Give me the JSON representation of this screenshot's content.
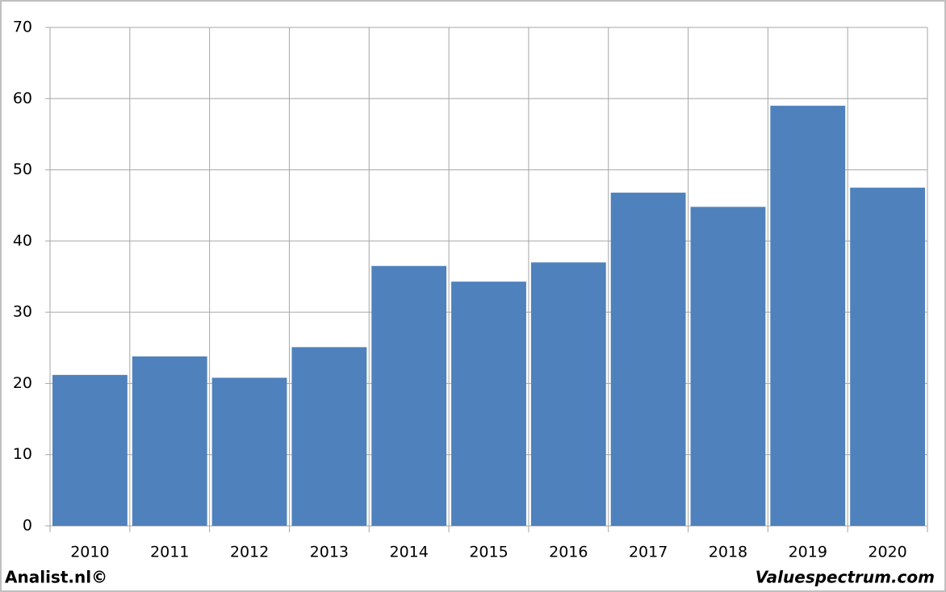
{
  "chart_data": {
    "type": "bar",
    "categories": [
      "2010",
      "2011",
      "2012",
      "2013",
      "2014",
      "2015",
      "2016",
      "2017",
      "2018",
      "2019",
      "2020"
    ],
    "values": [
      21.2,
      23.8,
      20.8,
      25.1,
      36.5,
      34.3,
      37.0,
      46.8,
      44.8,
      59.0,
      47.5
    ],
    "color": "#4f81bd",
    "ylim": [
      0,
      70
    ],
    "yticks": [
      0,
      10,
      20,
      30,
      40,
      50,
      60,
      70
    ],
    "grid": true,
    "annotations": [
      "Analist.nl©",
      "Valuespectrum.com"
    ]
  }
}
